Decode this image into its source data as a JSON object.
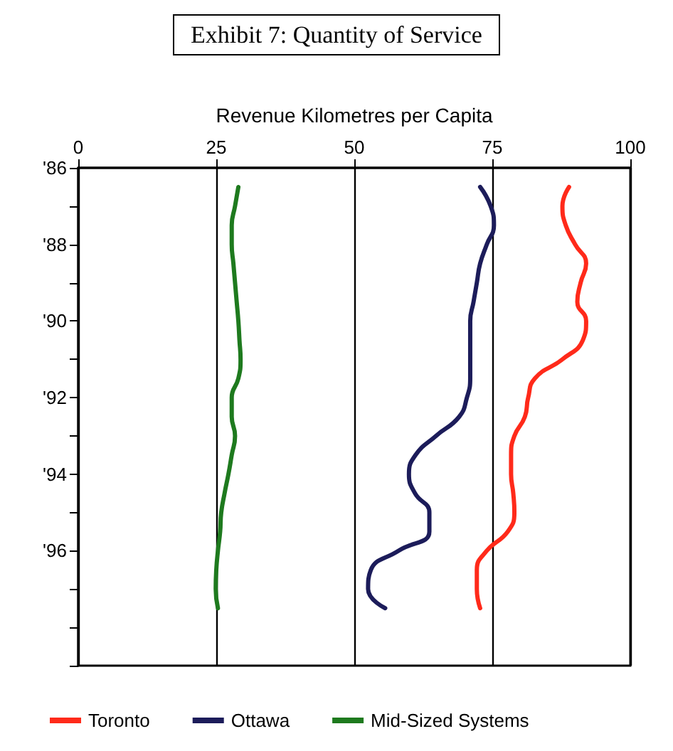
{
  "chart_data": {
    "type": "line",
    "title": "Exhibit 7: Quantity of Service",
    "xlabel": "Revenue Kilometres per Capita",
    "x": [
      1986.5,
      1987,
      1987.5,
      1988,
      1988.5,
      1989,
      1989.5,
      1990,
      1990.5,
      1991,
      1991.5,
      1992,
      1992.5,
      1993,
      1993.5,
      1994,
      1994.5,
      1995,
      1995.5,
      1996,
      1996.5,
      1997,
      1997.5
    ],
    "series": [
      {
        "name": "Toronto",
        "color": "#ff2a1a",
        "values": [
          88.9,
          87.7,
          88.3,
          90,
          92,
          91,
          90.4,
          92,
          91.4,
          87.7,
          82.7,
          81.5,
          80.9,
          79,
          78.4,
          78.4,
          78.8,
          79,
          77.8,
          74,
          72.2,
          72.2,
          72.8
        ]
      },
      {
        "name": "Ottawa",
        "color": "#1c1c5a",
        "values": [
          72.8,
          74.7,
          75.3,
          74,
          72.8,
          72.2,
          71.6,
          71,
          71,
          71,
          71,
          70.4,
          69,
          64.8,
          61.1,
          59.9,
          61,
          63.6,
          63.6,
          58,
          53,
          52.5,
          55.6
        ]
      },
      {
        "name": "Mid-Sized Systems",
        "color": "#1e7a1e",
        "values": [
          29,
          28.4,
          27.8,
          27.8,
          28.1,
          28.4,
          28.7,
          29,
          29.2,
          29.4,
          29,
          27.8,
          27.8,
          28.4,
          27.8,
          27.2,
          26.5,
          25.9,
          25.7,
          25.3,
          25,
          24.9,
          25.3
        ]
      }
    ],
    "ylim": [
      1999,
      1986
    ],
    "yticks": [
      {
        "value": 1986,
        "label": "'86"
      },
      {
        "value": 1987,
        "label": null
      },
      {
        "value": 1988,
        "label": "'88"
      },
      {
        "value": 1989,
        "label": null
      },
      {
        "value": 1990,
        "label": "'90"
      },
      {
        "value": 1991,
        "label": null
      },
      {
        "value": 1992,
        "label": "'92"
      },
      {
        "value": 1993,
        "label": null
      },
      {
        "value": 1994,
        "label": "'94"
      },
      {
        "value": 1995,
        "label": null
      },
      {
        "value": 1996,
        "label": "'96"
      },
      {
        "value": 1997,
        "label": null
      },
      {
        "value": 1998,
        "label": null
      },
      {
        "value": 1999,
        "label": null
      }
    ],
    "xlim": [
      0,
      100
    ],
    "xticks": [
      0,
      25,
      50,
      75,
      100
    ],
    "orientation": "horizontal",
    "grid": "x",
    "legend": "bottom",
    "marker": "none",
    "line_style": "solid"
  }
}
